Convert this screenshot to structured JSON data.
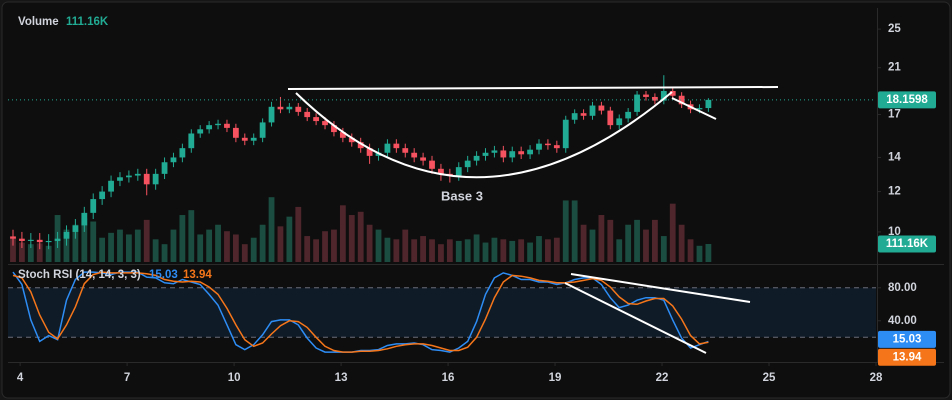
{
  "chart_data": [
    {
      "type": "candlestick",
      "title": "Volume",
      "annotation": "Base 3",
      "yscale": "log",
      "x": [
        3.8,
        4.05,
        4.3,
        4.55,
        4.8,
        5.05,
        5.3,
        5.55,
        5.8,
        6.05,
        6.3,
        6.55,
        6.8,
        7.05,
        7.3,
        7.55,
        7.8,
        8.05,
        8.3,
        8.55,
        8.8,
        9.05,
        9.3,
        9.55,
        9.8,
        10.05,
        10.3,
        10.55,
        10.8,
        11.05,
        11.3,
        11.55,
        11.8,
        12.05,
        12.3,
        12.55,
        12.8,
        13.05,
        13.3,
        13.55,
        13.8,
        14.05,
        14.3,
        14.55,
        14.8,
        15.05,
        15.3,
        15.55,
        15.8,
        16.05,
        16.3,
        16.55,
        16.8,
        17.05,
        17.3,
        17.55,
        17.8,
        18.05,
        18.3,
        18.55,
        18.8,
        19.05,
        19.3,
        19.55,
        19.8,
        20.05,
        20.3,
        20.55,
        20.8,
        21.05,
        21.3,
        21.55,
        21.8,
        22.05,
        22.3,
        22.55,
        22.8,
        23.05,
        23.3
      ],
      "open": [
        9.8,
        9.7,
        9.6,
        9.65,
        9.55,
        9.6,
        9.7,
        10.0,
        10.3,
        10.9,
        11.6,
        12.0,
        12.6,
        12.8,
        12.9,
        13.0,
        12.4,
        13.0,
        13.7,
        14.0,
        14.6,
        15.6,
        15.9,
        16.2,
        16.3,
        16.0,
        15.3,
        15.1,
        15.3,
        16.4,
        17.6,
        17.4,
        17.6,
        17.2,
        16.8,
        16.5,
        16.2,
        15.7,
        15.3,
        15.0,
        14.6,
        14.1,
        14.3,
        14.9,
        14.6,
        14.3,
        14.0,
        13.8,
        13.3,
        13.0,
        12.9,
        13.4,
        13.8,
        14.1,
        14.3,
        14.45,
        14.0,
        14.4,
        14.2,
        14.5,
        14.9,
        14.8,
        14.6,
        16.6,
        17.1,
        16.9,
        17.7,
        17.3,
        16.2,
        16.7,
        17.2,
        18.6,
        18.4,
        18.1,
        18.9,
        18.5,
        17.8,
        17.4,
        17.5
      ],
      "high": [
        10.1,
        10.0,
        9.95,
        9.95,
        9.9,
        10.0,
        10.3,
        10.6,
        11.2,
        11.9,
        12.3,
        12.9,
        13.1,
        13.2,
        13.3,
        13.3,
        13.3,
        14.0,
        14.3,
        14.9,
        15.9,
        16.2,
        16.5,
        16.6,
        16.6,
        16.3,
        15.6,
        15.6,
        16.7,
        18.0,
        18.4,
        17.9,
        17.9,
        17.5,
        17.1,
        16.8,
        16.5,
        16.0,
        15.6,
        15.3,
        14.9,
        14.6,
        15.2,
        15.2,
        14.9,
        14.6,
        14.3,
        14.1,
        13.6,
        13.3,
        13.7,
        14.1,
        14.4,
        14.6,
        14.75,
        14.75,
        14.7,
        14.7,
        14.8,
        15.2,
        15.2,
        15.1,
        16.9,
        17.4,
        17.4,
        18.0,
        18.0,
        17.6,
        17.0,
        17.5,
        18.9,
        18.9,
        18.7,
        20.3,
        19.2,
        18.8,
        18.1,
        17.8,
        18.3
      ],
      "low": [
        9.4,
        9.3,
        9.3,
        9.25,
        9.25,
        9.3,
        9.4,
        9.7,
        10.0,
        10.6,
        11.3,
        11.7,
        12.3,
        12.5,
        12.6,
        11.8,
        12.1,
        12.7,
        13.4,
        13.7,
        14.3,
        15.3,
        15.6,
        15.9,
        15.7,
        15.0,
        14.8,
        14.8,
        15.0,
        16.1,
        17.1,
        17.1,
        16.9,
        16.5,
        16.2,
        15.9,
        15.4,
        15.0,
        14.7,
        14.3,
        13.6,
        13.8,
        14.0,
        14.3,
        14.0,
        13.7,
        13.5,
        13.0,
        12.6,
        12.5,
        12.6,
        13.1,
        13.5,
        13.8,
        14.0,
        13.7,
        13.7,
        13.9,
        13.9,
        14.2,
        14.5,
        14.3,
        14.3,
        16.3,
        16.6,
        16.6,
        17.0,
        15.9,
        15.9,
        16.4,
        16.9,
        18.1,
        17.8,
        17.8,
        18.2,
        17.5,
        17.1,
        17.1,
        17.2
      ],
      "close": [
        9.7,
        9.6,
        9.65,
        9.55,
        9.6,
        9.7,
        10.0,
        10.3,
        10.9,
        11.6,
        12.0,
        12.6,
        12.8,
        12.9,
        13.0,
        12.4,
        13.0,
        13.7,
        14.0,
        14.6,
        15.6,
        15.9,
        16.2,
        16.3,
        16.0,
        15.3,
        15.1,
        15.3,
        16.4,
        17.6,
        17.4,
        17.6,
        17.2,
        16.8,
        16.5,
        16.2,
        15.7,
        15.3,
        15.0,
        14.6,
        14.1,
        14.3,
        14.9,
        14.6,
        14.3,
        14.0,
        13.8,
        13.3,
        13.0,
        12.9,
        13.4,
        13.8,
        14.1,
        14.3,
        14.45,
        14.0,
        14.4,
        14.2,
        14.5,
        14.9,
        14.8,
        14.6,
        16.6,
        17.1,
        16.9,
        17.7,
        17.3,
        16.2,
        16.7,
        17.2,
        18.6,
        18.4,
        18.1,
        18.9,
        18.5,
        17.8,
        17.4,
        17.5,
        18.16
      ],
      "up_color": "#22ab94",
      "down_color": "#f7525f",
      "volume": {
        "values": [
          150,
          120,
          110,
          115,
          100,
          290,
          200,
          230,
          270,
          250,
          150,
          180,
          200,
          170,
          200,
          260,
          140,
          110,
          200,
          290,
          320,
          170,
          200,
          230,
          190,
          170,
          110,
          150,
          230,
          400,
          220,
          280,
          340,
          160,
          140,
          190,
          200,
          350,
          290,
          310,
          230,
          200,
          150,
          140,
          200,
          140,
          160,
          140,
          110,
          140,
          130,
          140,
          170,
          120,
          150,
          140,
          130,
          140,
          120,
          160,
          140,
          150,
          380,
          380,
          230,
          200,
          290,
          260,
          140,
          230,
          260,
          200,
          260,
          160,
          360,
          230,
          140,
          100,
          111.16
        ],
        "last_label": "111.16K",
        "vlim": [
          0,
          1000
        ],
        "up_color": "#1b4d40",
        "down_color": "#4f262c"
      },
      "current_price": 18.1598,
      "xlim": [
        3.66,
        28
      ],
      "xticks": [
        4,
        7,
        10,
        13,
        16,
        19,
        22,
        25,
        28
      ],
      "ylim": [
        8.73,
        27.5
      ],
      "yticks": [
        10,
        12,
        14,
        17,
        21,
        25
      ]
    },
    {
      "type": "line",
      "title": "Stoch RSI (14, 14, 3, 3)",
      "series": [
        {
          "color": "#2e8df5",
          "values": [
            99,
            84,
            41,
            15,
            22,
            17,
            65,
            90,
            99,
            99,
            98,
            96,
            99,
            99,
            99,
            93,
            92,
            86,
            85,
            90,
            87,
            84,
            72,
            59,
            35,
            11,
            5,
            11,
            23,
            39,
            41,
            41,
            35,
            19,
            7,
            2,
            2,
            2,
            2,
            4,
            4,
            5,
            10,
            12,
            12,
            13,
            11,
            5,
            4,
            2,
            7,
            15,
            39,
            72,
            92,
            98,
            95,
            90,
            90,
            87,
            87,
            84,
            86,
            90,
            92,
            92,
            84,
            68,
            56,
            59,
            65,
            68,
            68,
            65,
            41,
            19,
            7,
            11,
            15.03
          ]
        },
        {
          "color": "#f5761a",
          "values": [
            95,
            92,
            75,
            47,
            26,
            18,
            35,
            57,
            85,
            96,
            99,
            98,
            98,
            98,
            98,
            97,
            95,
            90,
            88,
            87,
            88,
            87,
            81,
            72,
            55,
            35,
            17,
            9,
            13,
            24,
            34,
            40,
            39,
            32,
            20,
            9,
            4,
            2,
            2,
            3,
            3,
            4,
            6,
            9,
            11,
            12,
            12,
            10,
            7,
            4,
            4,
            8,
            20,
            42,
            68,
            87,
            95,
            94,
            92,
            89,
            88,
            86,
            86,
            87,
            89,
            91,
            89,
            81,
            69,
            61,
            60,
            64,
            67,
            67,
            58,
            42,
            22,
            12,
            13.94
          ]
        }
      ],
      "bands": [
        20,
        80
      ],
      "ylim": [
        -10,
        104
      ],
      "yticks": [
        {
          "value": 80,
          "label": "80.00"
        },
        {
          "value": 40,
          "label": "40.00"
        }
      ]
    }
  ]
}
